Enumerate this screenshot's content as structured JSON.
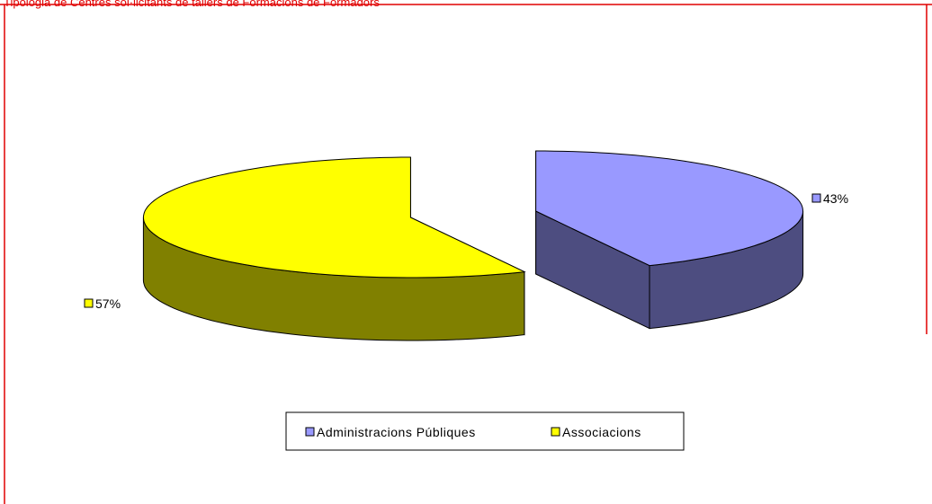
{
  "chart_data": {
    "type": "pie",
    "title": "Tipologia de Centres sol·licitants de tallers de Formacions de Formadors",
    "categories": [
      "Administracions Públiques",
      "Associacions"
    ],
    "values": [
      43,
      57
    ],
    "value_labels": [
      "43%",
      "57%"
    ],
    "colors": [
      "#9999ff",
      "#ffff00"
    ],
    "side_colors": [
      "#4d4d80",
      "#808000"
    ],
    "legend": "bottom"
  }
}
